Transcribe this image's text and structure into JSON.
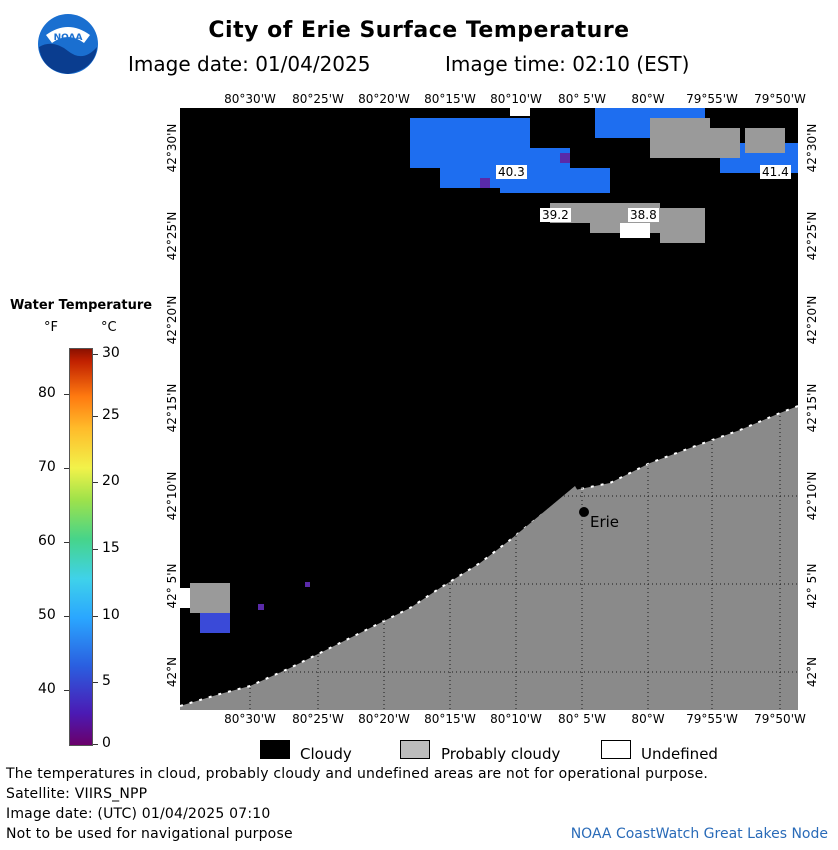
{
  "header": {
    "title": "City of Erie Surface Temperature",
    "image_date": "Image date: 01/04/2025",
    "image_time": "Image time: 02:10 (EST)"
  },
  "logo": {
    "text": "NOAA"
  },
  "map": {
    "lon_labels": [
      "80°30'W",
      "80°25'W",
      "80°20'W",
      "80°15'W",
      "80°10'W",
      "80° 5'W",
      "80°W",
      "79°55'W",
      "79°50'W"
    ],
    "lat_labels": [
      "42°30'N",
      "42°25'N",
      "42°20'N",
      "42°15'N",
      "42°10'N",
      "42° 5'N",
      "42°N"
    ],
    "city": "Erie",
    "temperature_labels": [
      "40.3",
      "41.4",
      "39.2",
      "38.8"
    ]
  },
  "legend": {
    "title": "Water Temperature",
    "unit_f": "°F",
    "unit_c": "°C",
    "f_ticks": [
      "80",
      "70",
      "60",
      "50",
      "40"
    ],
    "c_ticks": [
      "30",
      "25",
      "20",
      "15",
      "10",
      "5",
      "0"
    ]
  },
  "key": {
    "cloudy": "Cloudy",
    "probably_cloudy": "Probably cloudy",
    "undefined": "Undefined"
  },
  "footer": {
    "note": "The temperatures in cloud, probably cloudy and undefined areas are not for operational purpose.",
    "satellite": "Satellite: VIIRS_NPP",
    "utc_date": "Image date: (UTC) 01/04/2025  07:10",
    "nav_warning": "Not to be used for navigational purpose",
    "credit": "NOAA CoastWatch Great Lakes Node"
  },
  "colors": {
    "cloudy": "#000000",
    "probably_cloudy": "#9a9a9a",
    "land": "#8a8a8a",
    "undefined": "#ffffff",
    "water_blue": "#1e6ef0",
    "credit": "#2a6bb8"
  }
}
